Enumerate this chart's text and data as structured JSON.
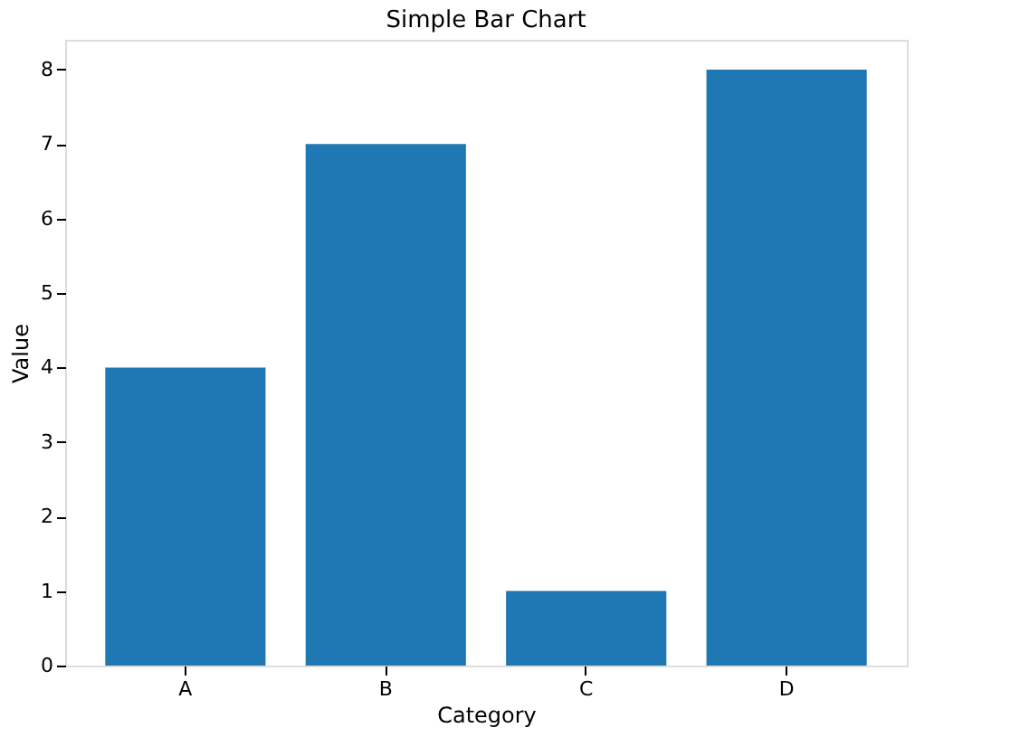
{
  "chart_data": {
    "type": "bar",
    "title": "Simple Bar Chart",
    "xlabel": "Category",
    "ylabel": "Value",
    "categories": [
      "A",
      "B",
      "C",
      "D"
    ],
    "series": [
      {
        "color": "#1f77b4",
        "values": [
          4,
          7,
          1,
          8
        ]
      }
    ],
    "ylim": [
      0,
      8.4
    ],
    "yticks": [
      0,
      1,
      2,
      3,
      4,
      5,
      6,
      7,
      8
    ],
    "grid": false,
    "legend": false
  }
}
